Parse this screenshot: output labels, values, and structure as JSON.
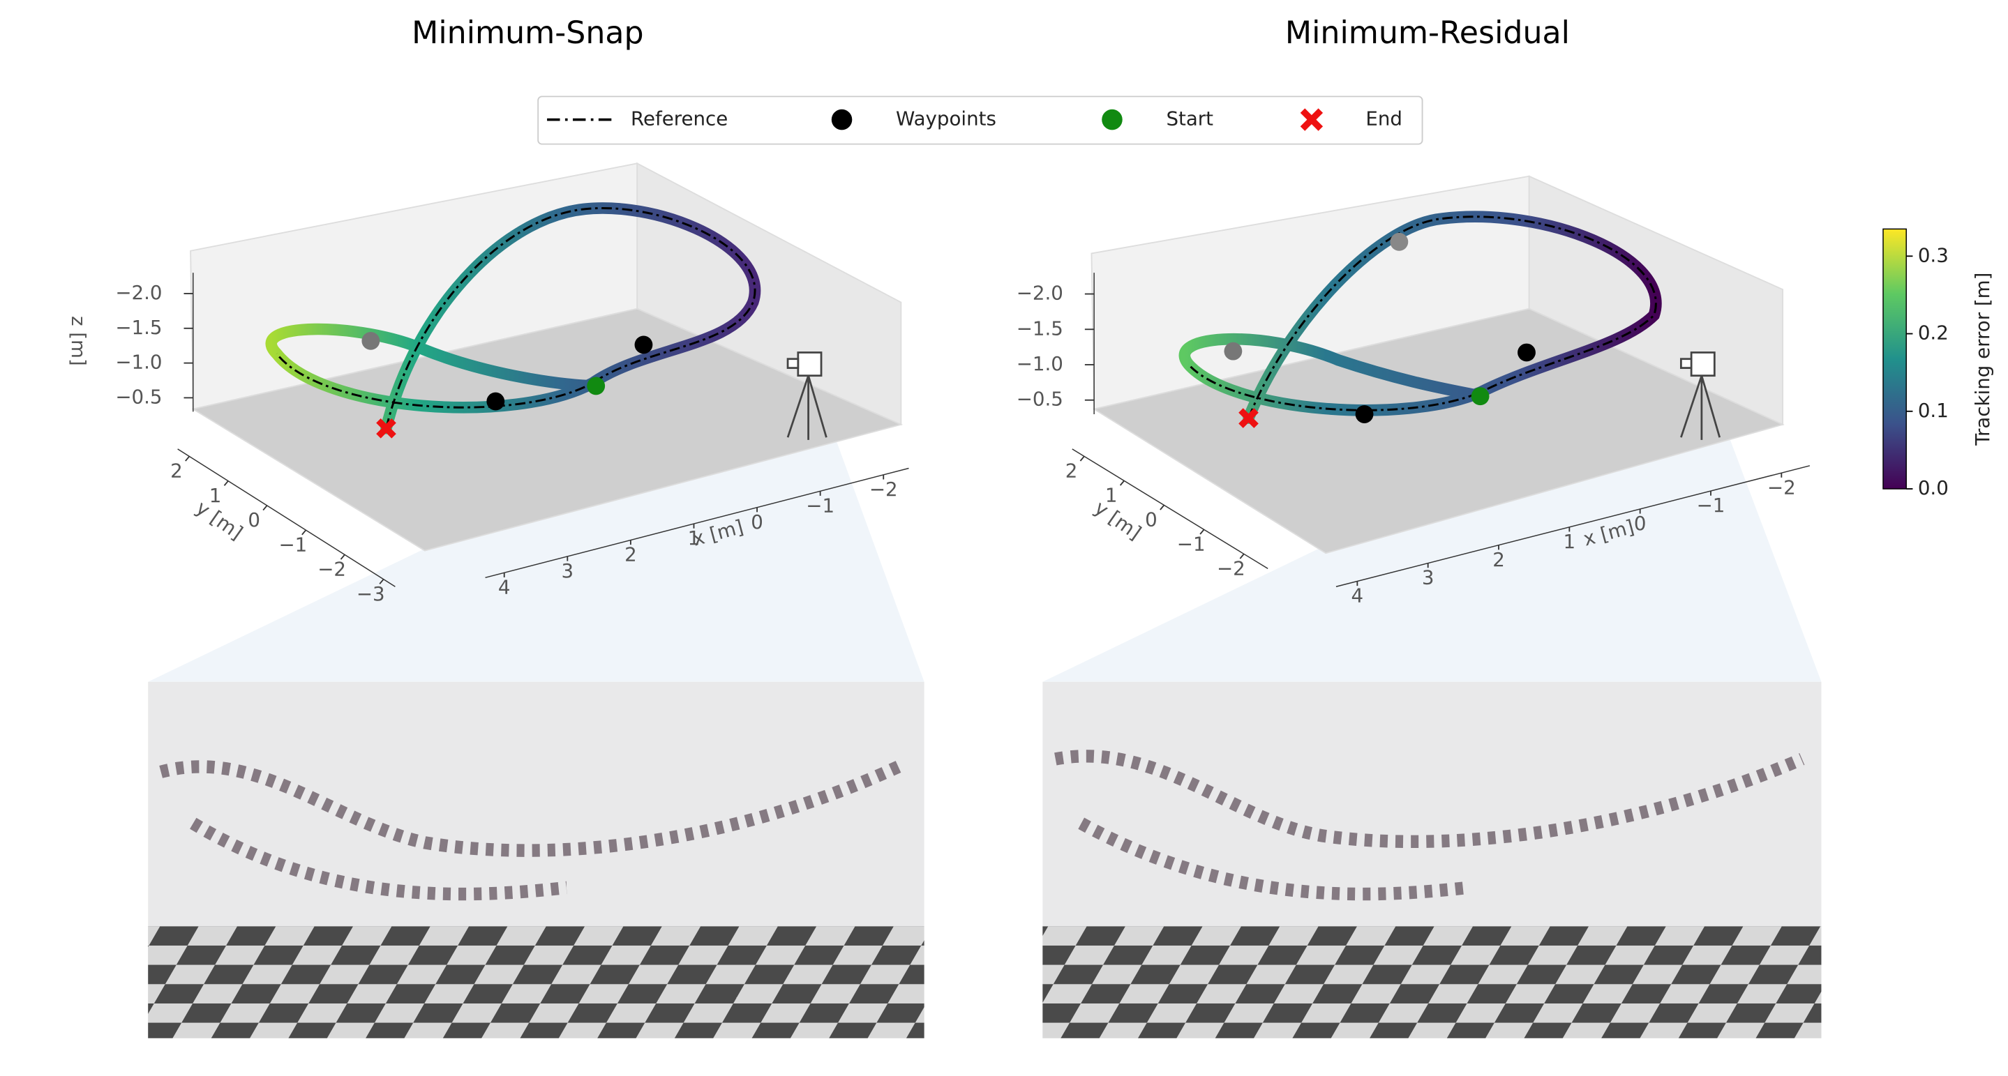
{
  "chart_data": [
    {
      "type": "trajectory3d",
      "title": "Minimum-Snap",
      "xlabel": "x [m]",
      "ylabel": "y [m]",
      "zlabel": "z [m]",
      "xlim": [
        4.3,
        -2.4
      ],
      "xticks": [
        4,
        3,
        2,
        1,
        0,
        {
          "value": -1,
          "label": "−1"
        },
        {
          "value": -2,
          "label": "−2"
        }
      ],
      "ylim": [
        2.3,
        -3.3
      ],
      "yticks": [
        2,
        1,
        0,
        {
          "value": -1,
          "label": "−1"
        },
        {
          "value": -2,
          "label": "−2"
        },
        {
          "value": -3,
          "label": "−3"
        }
      ],
      "zlim": [
        -0.3,
        -2.3
      ],
      "zticks": [
        {
          "value": -0.5,
          "label": "−0.5"
        },
        {
          "value": -1,
          "label": "−1.0"
        },
        {
          "value": -1.5,
          "label": "−1.5"
        },
        {
          "value": -2,
          "label": "−2.0"
        }
      ]
    },
    {
      "type": "trajectory3d",
      "title": "Minimum-Residual",
      "xlabel": "x [m]",
      "ylabel": "y [m]",
      "zlabel": "z [m]",
      "xlim": [
        4.3,
        -2.4
      ],
      "xticks": [
        4,
        3,
        2,
        1,
        0,
        {
          "value": -1,
          "label": "−1"
        },
        {
          "value": -2,
          "label": "−2"
        }
      ],
      "ylim": [
        2.3,
        -2.6
      ],
      "yticks": [
        2,
        1,
        0,
        {
          "value": -1,
          "label": "−1"
        },
        {
          "value": -2,
          "label": "−2"
        }
      ],
      "zlim": [
        -0.3,
        -2.3
      ],
      "zticks": [
        {
          "value": -0.5,
          "label": "−0.5"
        },
        {
          "value": -1,
          "label": "−1.0"
        },
        {
          "value": -1.5,
          "label": "−1.5"
        },
        {
          "value": -2,
          "label": "−2.0"
        }
      ]
    }
  ],
  "legend": [
    {
      "name": "Reference",
      "color": "#000000",
      "marker": "dashdot"
    },
    {
      "name": "Waypoints",
      "color": "#000000",
      "marker": "circle"
    },
    {
      "name": "Start",
      "color": "#118a11",
      "marker": "circle"
    },
    {
      "name": "End",
      "color": "#ee1111",
      "marker": "cross"
    }
  ],
  "colorbar": {
    "label": "Tracking error [m]",
    "colormap": "viridis",
    "lim": [
      0,
      0.335
    ],
    "ticks": [
      {
        "value": 0,
        "label": "0.0"
      },
      0.1,
      0.2,
      0.3
    ]
  }
}
